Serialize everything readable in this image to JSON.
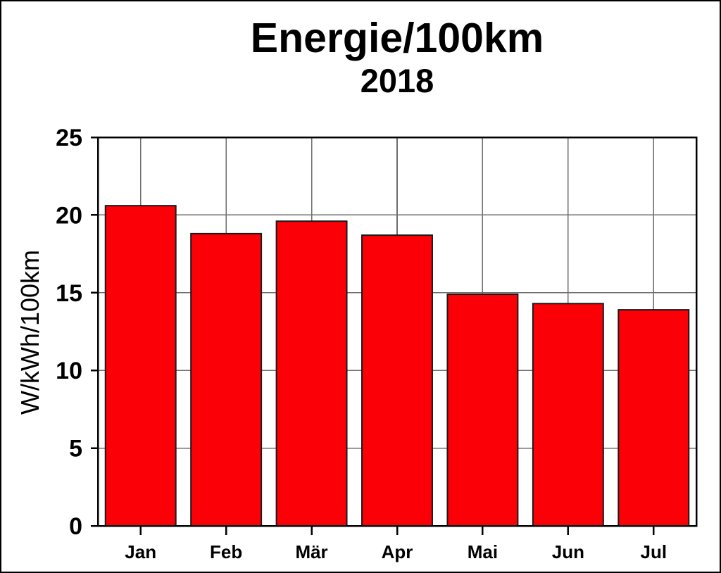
{
  "window": {
    "background": "#ffffff",
    "border_color": "#000000"
  },
  "chart_data": {
    "type": "bar",
    "title": "Energie/100km",
    "subtitle": "2018",
    "ylabel": "W/kWh/100km",
    "xlabel": "",
    "categories": [
      "Jan",
      "Feb",
      "Mär",
      "Apr",
      "Mai",
      "Jun",
      "Jul"
    ],
    "values": [
      20.6,
      18.8,
      19.6,
      18.7,
      14.9,
      14.3,
      13.9
    ],
    "ylim": [
      0,
      25
    ],
    "yticks": [
      0,
      5,
      10,
      15,
      20,
      25
    ],
    "grid": true,
    "legend": "none",
    "bar_color": "#fb0006",
    "bar_border_color": "#1a1a1a",
    "grid_color": "#6e6e6e",
    "frame_color": "#000000",
    "tick_color": "#000000"
  }
}
